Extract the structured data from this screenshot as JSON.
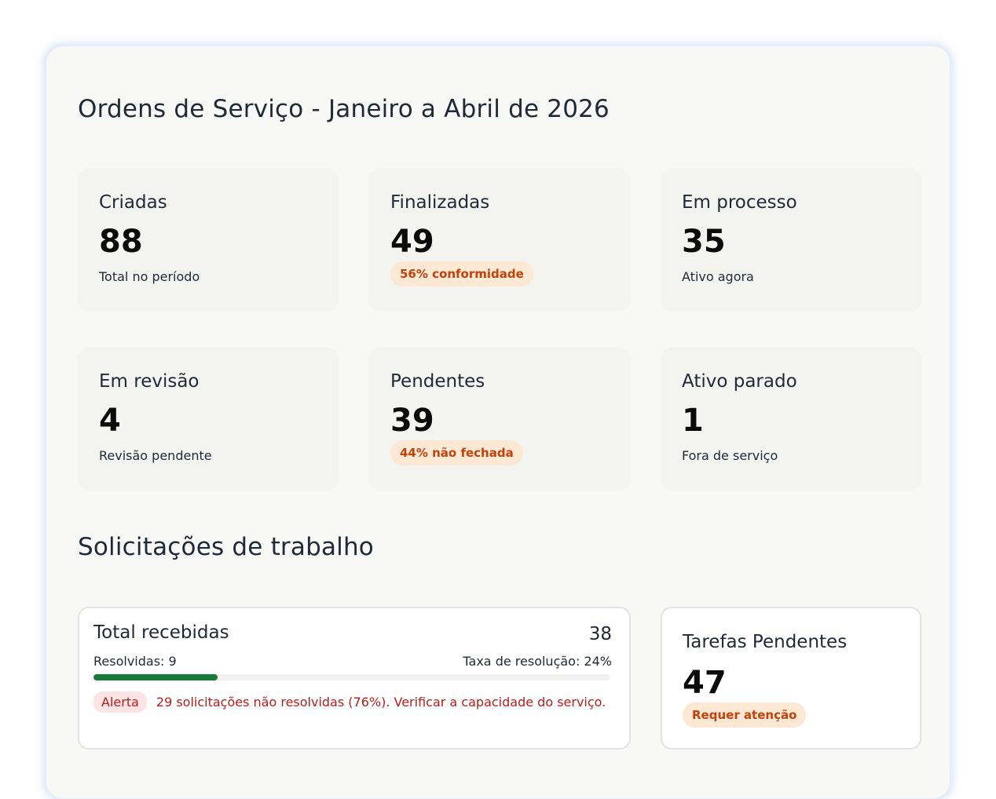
{
  "dashboard": {
    "title": "Ordens de Serviço - Janeiro a Abril de 2026",
    "kpis": [
      {
        "label": "Criadas",
        "value": "88",
        "sub": "Total no período"
      },
      {
        "label": "Finalizadas",
        "value": "49",
        "badge": "56% conformidade"
      },
      {
        "label": "Em processo",
        "value": "35",
        "sub": "Ativo agora"
      },
      {
        "label": "Em revisão",
        "value": "4",
        "sub": "Revisão pendente"
      },
      {
        "label": "Pendentes",
        "value": "39",
        "badge": "44% não fechada"
      },
      {
        "label": "Ativo parado",
        "value": "1",
        "sub": "Fora de serviço"
      }
    ]
  },
  "requests": {
    "section_title": "Solicitações de trabalho",
    "title": "Total recebidas",
    "total": "38",
    "resolved_label": "Resolvidas: 9",
    "rate_label": "Taxa de resolução: 24%",
    "resolution_fraction": 0.24,
    "alert_badge": "Alerta",
    "alert_text": "29 solicitações não resolvidas (76%). Verificar a capacidade do serviço."
  },
  "tasks": {
    "title": "Tarefas Pendentes",
    "value": "47",
    "badge": "Requer atenção"
  },
  "colors": {
    "progress": "#1a7a3a",
    "warning_badge_bg": "#fde8d4",
    "warning_badge_text": "#c2410c",
    "alert_bg": "#fde4e4",
    "alert_text": "#b91c1c"
  }
}
